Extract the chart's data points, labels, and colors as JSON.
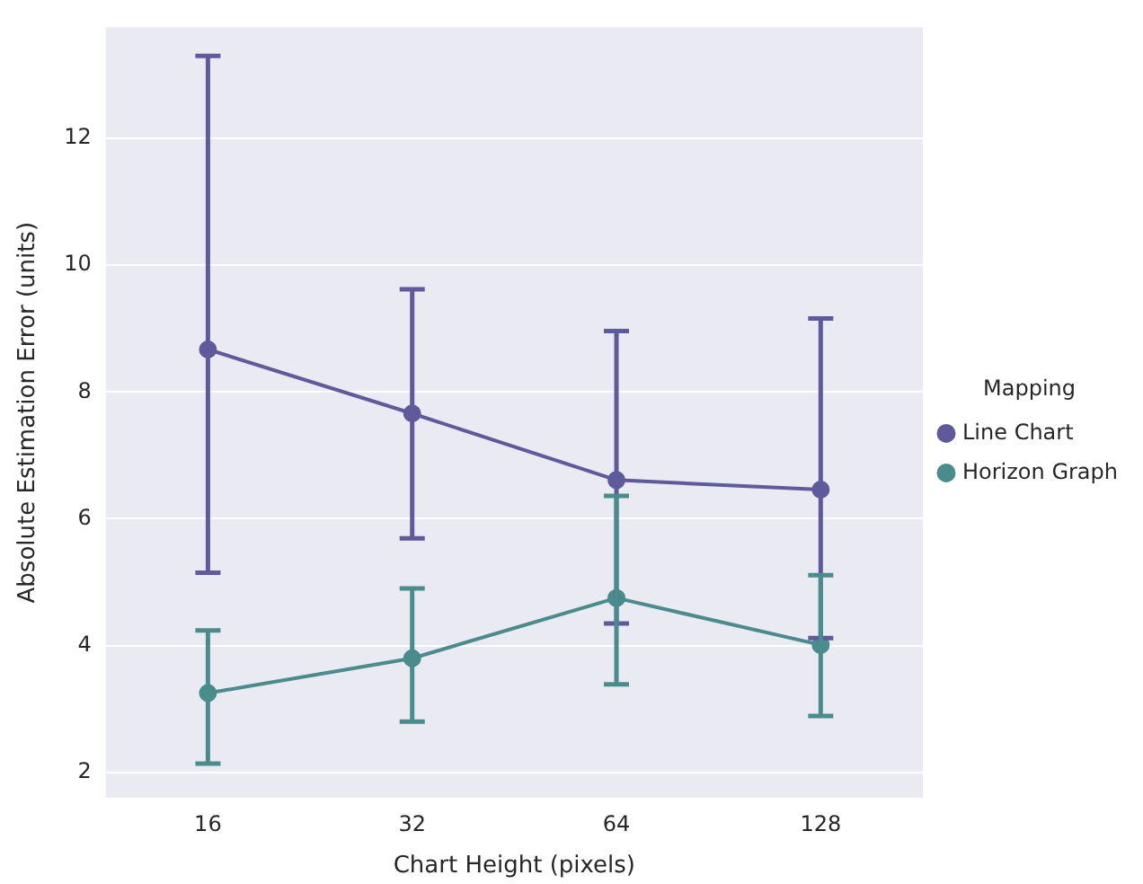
{
  "chart_data": {
    "type": "line",
    "xlabel": "Chart Height (pixels)",
    "ylabel": "Absolute Estimation Error (units)",
    "legend_title": "Mapping",
    "categories": [
      "16",
      "32",
      "64",
      "128"
    ],
    "series": [
      {
        "name": "Line Chart",
        "color": "#5f5a9b",
        "values": [
          8.67,
          7.66,
          6.61,
          6.46
        ],
        "errors": [
          [
            5.15,
            13.3
          ],
          [
            5.69,
            9.62
          ],
          [
            4.35,
            8.96
          ],
          [
            4.12,
            9.16
          ]
        ]
      },
      {
        "name": "Horizon Graph",
        "color": "#4a8b8c",
        "values": [
          3.25,
          3.8,
          4.75,
          4.01
        ],
        "errors": [
          [
            2.14,
            4.24
          ],
          [
            2.8,
            4.9
          ],
          [
            3.39,
            6.36
          ],
          [
            2.89,
            5.11
          ]
        ]
      }
    ],
    "ylim": [
      1.6,
      13.75
    ],
    "yticks": [
      2,
      4,
      6,
      8,
      10,
      12
    ],
    "grid": "y",
    "legend": "right",
    "marker": "circle",
    "line_style": "solid"
  }
}
